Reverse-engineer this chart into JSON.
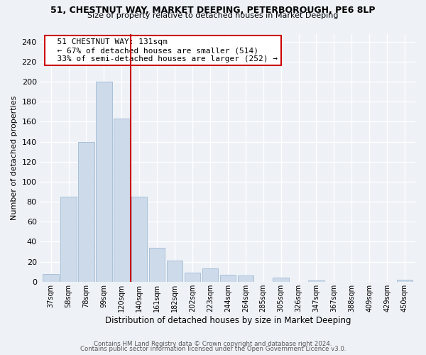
{
  "title_line1": "51, CHESTNUT WAY, MARKET DEEPING, PETERBOROUGH, PE6 8LP",
  "title_line2": "Size of property relative to detached houses in Market Deeping",
  "xlabel": "Distribution of detached houses by size in Market Deeping",
  "ylabel": "Number of detached properties",
  "bar_labels": [
    "37sqm",
    "58sqm",
    "78sqm",
    "99sqm",
    "120sqm",
    "140sqm",
    "161sqm",
    "182sqm",
    "202sqm",
    "223sqm",
    "244sqm",
    "264sqm",
    "285sqm",
    "305sqm",
    "326sqm",
    "347sqm",
    "367sqm",
    "388sqm",
    "409sqm",
    "429sqm",
    "450sqm"
  ],
  "bar_values": [
    8,
    85,
    140,
    200,
    163,
    85,
    34,
    21,
    9,
    13,
    7,
    6,
    0,
    4,
    0,
    1,
    0,
    0,
    0,
    0,
    2
  ],
  "bar_color": "#ccdaea",
  "bar_edge_color": "#aac0d8",
  "vline_x": 4.5,
  "vline_color": "#cc0000",
  "annotation_title": "51 CHESTNUT WAY: 131sqm",
  "annotation_line1": "← 67% of detached houses are smaller (514)",
  "annotation_line2": "33% of semi-detached houses are larger (252) →",
  "annotation_box_color": "#ffffff",
  "annotation_box_edge": "#cc0000",
  "ylim": [
    0,
    248
  ],
  "yticks": [
    0,
    20,
    40,
    60,
    80,
    100,
    120,
    140,
    160,
    180,
    200,
    220,
    240
  ],
  "footnote1": "Contains HM Land Registry data © Crown copyright and database right 2024.",
  "footnote2": "Contains public sector information licensed under the Open Government Licence v3.0.",
  "bg_color": "#eef2f7"
}
